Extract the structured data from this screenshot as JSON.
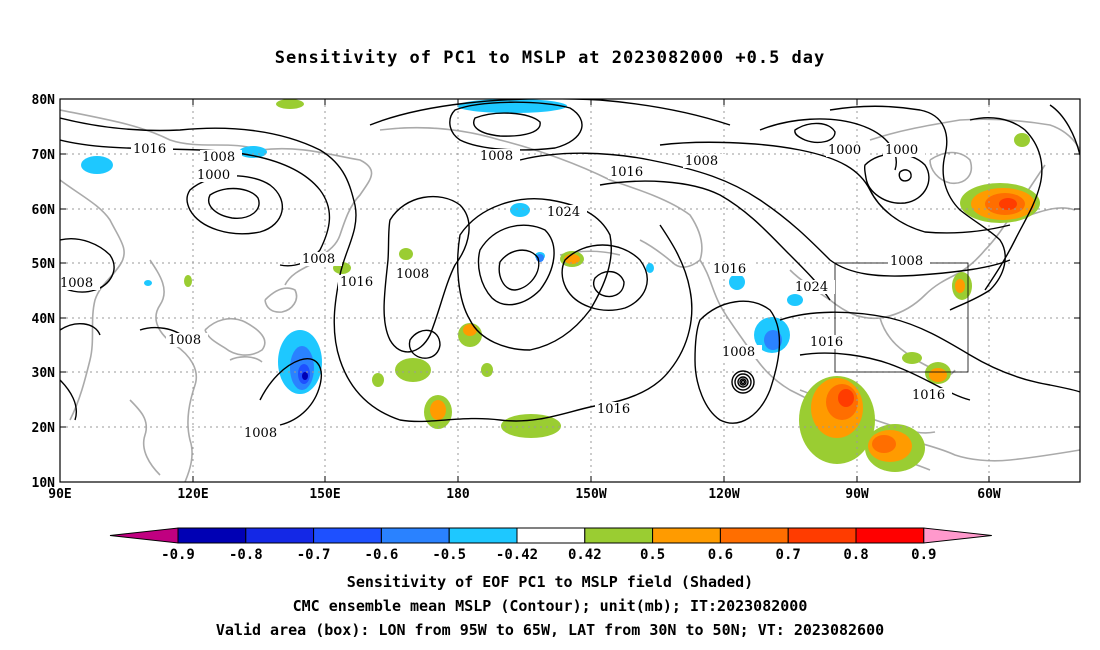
{
  "title": "Sensitivity of PC1 to MSLP at 2023082000 +0.5 day",
  "lat_labels": [
    "80N",
    "70N",
    "60N",
    "50N",
    "40N",
    "30N",
    "20N",
    "10N"
  ],
  "lon_labels": [
    "90E",
    "120E",
    "150E",
    "180",
    "150W",
    "120W",
    "90W",
    "60W"
  ],
  "contour_labels": [
    "1016",
    "1008",
    "1000",
    "1008",
    "1016",
    "1024",
    "1008",
    "1000",
    "1000",
    "1008",
    "1008",
    "1016",
    "1008",
    "1008",
    "1016",
    "1024",
    "1016",
    "1008",
    "1008",
    "1016",
    "1016",
    "1008"
  ],
  "colorbar": {
    "labels": [
      "-0.9",
      "-0.8",
      "-0.7",
      "-0.6",
      "-0.5",
      "-0.42",
      "0.42",
      "0.5",
      "0.6",
      "0.7",
      "0.8",
      "0.9"
    ],
    "colors": [
      "#c00080",
      "#0000b4",
      "#1428e6",
      "#1e50ff",
      "#2a82ff",
      "#1ec8ff",
      "#ffffff",
      "#9acd32",
      "#ff9b00",
      "#ff6e00",
      "#ff3c00",
      "#ff0000",
      "#ff99cc"
    ]
  },
  "valid_box": {
    "lon_min": -95,
    "lon_max": -65,
    "lat_min": 30,
    "lat_max": 50
  },
  "footer": {
    "line1": "Sensitivity of EOF PC1 to MSLP field (Shaded)",
    "line2": "CMC ensemble mean MSLP (Contour); unit(mb); IT:2023082000",
    "line3": "Valid area (box): LON from 95W to 65W, LAT from 30N to 50N; VT: 2023082600"
  },
  "colors": {
    "contour": "#000000",
    "coast": "#aaaaaa",
    "grid": "#999999",
    "frame": "#000000"
  }
}
